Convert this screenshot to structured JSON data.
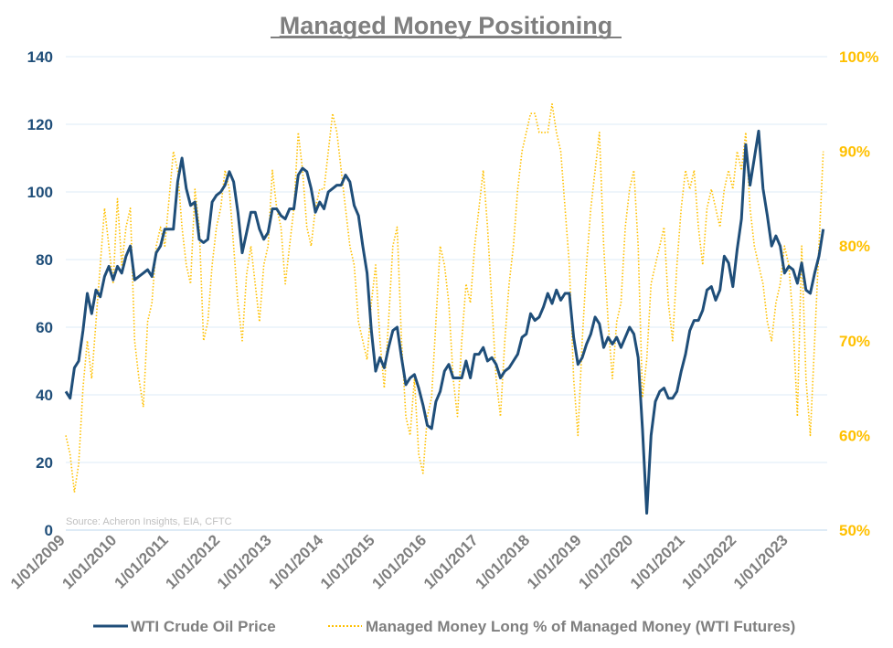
{
  "chart_data": {
    "type": "line",
    "title": "Managed Money Positioning",
    "source_note": "Source: Acheron Insights, EIA, CFTC",
    "x_tick_labels": [
      "1/01/2009",
      "1/01/2010",
      "1/01/2011",
      "1/01/2012",
      "1/01/2013",
      "1/01/2014",
      "1/01/2015",
      "1/01/2016",
      "1/01/2017",
      "1/01/2018",
      "1/01/2019",
      "1/01/2020",
      "1/01/2021",
      "1/01/2022",
      "1/01/2023"
    ],
    "x_start": "2009-01",
    "x_frequency": "monthly",
    "y_left": {
      "min": 0,
      "max": 140,
      "step": 20,
      "ticks": [
        "0",
        "20",
        "40",
        "60",
        "80",
        "100",
        "120",
        "140"
      ]
    },
    "y_right": {
      "min": 50,
      "max": 100,
      "step": 10,
      "ticks": [
        "50%",
        "60%",
        "70%",
        "80%",
        "90%",
        "100%"
      ]
    },
    "grid": true,
    "legend_position": "bottom",
    "series": [
      {
        "name": "WTI Crude Oil Price",
        "axis": "left",
        "color": "#1f4e79",
        "style": "solid",
        "values": [
          41,
          39,
          48,
          50,
          59,
          70,
          64,
          71,
          69,
          75,
          78,
          74,
          78,
          76,
          81,
          84,
          74,
          75,
          76,
          77,
          75,
          82,
          84,
          89,
          89,
          89,
          103,
          110,
          101,
          96,
          97,
          86,
          85,
          86,
          97,
          99,
          100,
          102,
          106,
          103,
          94,
          82,
          88,
          94,
          94,
          89,
          86,
          88,
          95,
          95,
          93,
          92,
          95,
          95,
          105,
          107,
          106,
          101,
          94,
          97,
          95,
          100,
          101,
          102,
          102,
          105,
          103,
          96,
          93,
          84,
          76,
          59,
          47,
          51,
          48,
          54,
          59,
          60,
          51,
          43,
          45,
          46,
          42,
          37,
          31,
          30,
          38,
          41,
          47,
          49,
          45,
          45,
          45,
          50,
          45,
          52,
          52,
          54,
          50,
          51,
          49,
          45,
          47,
          48,
          50,
          52,
          57,
          58,
          64,
          62,
          63,
          66,
          70,
          67,
          71,
          68,
          70,
          70,
          57,
          49,
          51,
          55,
          58,
          63,
          61,
          54,
          57,
          55,
          57,
          54,
          57,
          60,
          58,
          51,
          30,
          5,
          28,
          38,
          41,
          42,
          39,
          39,
          41,
          47,
          52,
          59,
          62,
          62,
          65,
          71,
          72,
          68,
          71,
          81,
          79,
          72,
          83,
          92,
          114,
          102,
          110,
          118,
          101,
          93,
          84,
          87,
          84,
          76,
          78,
          77,
          73,
          79,
          71,
          70,
          76,
          81,
          89
        ]
      },
      {
        "name": "Managed Money Long % of Managed Money (WTI Futures)",
        "axis": "right",
        "color": "#ffc000",
        "style": "dotted",
        "values": [
          60,
          58,
          54,
          57,
          65,
          70,
          66,
          72,
          78,
          84,
          80,
          76,
          85,
          78,
          82,
          84,
          70,
          66,
          63,
          72,
          74,
          80,
          82,
          80,
          85,
          90,
          88,
          82,
          78,
          76,
          86,
          82,
          70,
          72,
          78,
          82,
          84,
          88,
          86,
          80,
          74,
          70,
          77,
          80,
          76,
          72,
          78,
          80,
          88,
          84,
          82,
          76,
          80,
          84,
          92,
          88,
          82,
          80,
          84,
          86,
          86,
          90,
          94,
          92,
          88,
          84,
          80,
          78,
          72,
          70,
          68,
          74,
          78,
          70,
          65,
          72,
          80,
          82,
          70,
          62,
          60,
          66,
          58,
          56,
          62,
          64,
          72,
          80,
          78,
          74,
          66,
          62,
          70,
          76,
          74,
          80,
          84,
          88,
          82,
          74,
          66,
          62,
          70,
          76,
          80,
          86,
          90,
          92,
          94,
          94,
          92,
          92,
          92,
          95,
          92,
          90,
          84,
          78,
          66,
          60,
          70,
          78,
          84,
          88,
          92,
          80,
          72,
          66,
          72,
          74,
          82,
          86,
          88,
          80,
          64,
          68,
          76,
          78,
          80,
          82,
          74,
          70,
          78,
          84,
          88,
          86,
          88,
          82,
          78,
          84,
          86,
          84,
          82,
          86,
          88,
          86,
          90,
          88,
          92,
          84,
          80,
          78,
          76,
          72,
          70,
          74,
          76,
          80,
          78,
          72,
          62,
          80,
          66,
          60,
          70,
          80,
          90
        ]
      }
    ]
  }
}
